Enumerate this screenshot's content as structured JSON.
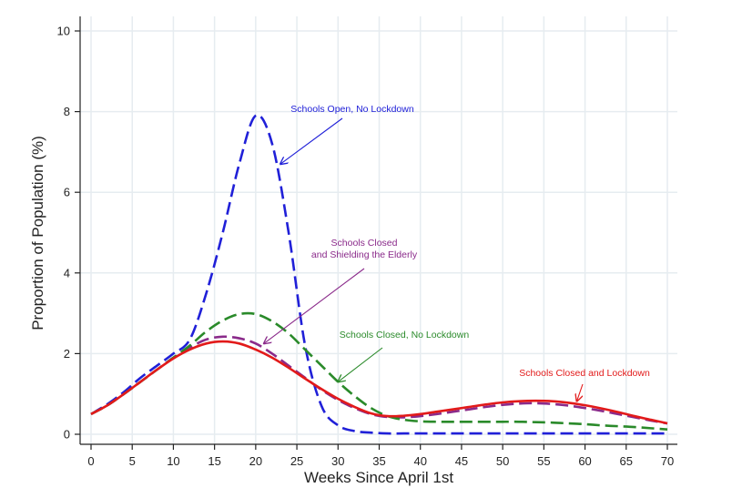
{
  "chart_data": {
    "type": "line",
    "title": "",
    "xlabel": "Weeks Since April 1st",
    "ylabel": "Proportion of Population (%)",
    "xlim": [
      0,
      70
    ],
    "ylim": [
      0,
      10
    ],
    "x_ticks": [
      0,
      5,
      10,
      15,
      20,
      25,
      30,
      35,
      40,
      45,
      50,
      55,
      60,
      65,
      70
    ],
    "y_ticks": [
      0,
      2,
      4,
      6,
      8,
      10
    ],
    "grid": true,
    "legend": "none (series labelled by arrow annotations)",
    "series": [
      {
        "name": "Schools Open, No Lockdown",
        "color": "#2020d8",
        "style": "dashed",
        "x": [
          0,
          2,
          4,
          6,
          8,
          10,
          12,
          14,
          16,
          18,
          20,
          22,
          24,
          26,
          28,
          30,
          32,
          34,
          36,
          38,
          40,
          50,
          60,
          70
        ],
        "y": [
          0.5,
          0.75,
          1.05,
          1.4,
          1.7,
          2.0,
          2.35,
          3.5,
          5.0,
          6.7,
          7.9,
          7.2,
          5.0,
          2.2,
          0.7,
          0.22,
          0.08,
          0.04,
          0.02,
          0.02,
          0.02,
          0.02,
          0.02,
          0.02
        ]
      },
      {
        "name": "Schools Closed and Shielding the Elderly",
        "color": "#8a2a8a",
        "style": "dashed",
        "x": [
          0,
          2,
          4,
          6,
          8,
          10,
          12,
          14,
          16,
          18,
          20,
          22,
          24,
          26,
          28,
          30,
          32,
          34,
          36,
          38,
          40,
          42,
          44,
          46,
          48,
          50,
          52,
          54,
          56,
          58,
          60,
          62,
          64,
          66,
          68,
          70
        ],
        "y": [
          0.5,
          0.72,
          1.0,
          1.3,
          1.6,
          1.9,
          2.15,
          2.35,
          2.42,
          2.38,
          2.25,
          2.0,
          1.7,
          1.4,
          1.1,
          0.85,
          0.65,
          0.5,
          0.43,
          0.42,
          0.45,
          0.5,
          0.56,
          0.62,
          0.68,
          0.73,
          0.76,
          0.77,
          0.75,
          0.71,
          0.65,
          0.58,
          0.5,
          0.42,
          0.34,
          0.27
        ]
      },
      {
        "name": "Schools Closed, No Lockdown",
        "color": "#2a8a2a",
        "style": "dashed",
        "x": [
          0,
          2,
          4,
          6,
          8,
          10,
          12,
          14,
          16,
          18,
          20,
          22,
          24,
          26,
          28,
          30,
          32,
          34,
          36,
          38,
          40,
          42,
          44,
          46,
          48,
          50,
          52,
          54,
          56,
          58,
          60,
          62,
          64,
          66,
          68,
          70
        ],
        "y": [
          0.5,
          0.72,
          1.0,
          1.3,
          1.6,
          1.9,
          2.2,
          2.55,
          2.82,
          2.98,
          2.98,
          2.8,
          2.5,
          2.1,
          1.7,
          1.3,
          0.95,
          0.65,
          0.45,
          0.36,
          0.32,
          0.31,
          0.31,
          0.31,
          0.31,
          0.31,
          0.31,
          0.3,
          0.29,
          0.27,
          0.25,
          0.22,
          0.2,
          0.18,
          0.15,
          0.12
        ]
      },
      {
        "name": "Schools Closed and Lockdown",
        "color": "#e21a1a",
        "style": "solid",
        "x": [
          0,
          2,
          4,
          6,
          8,
          10,
          12,
          14,
          16,
          18,
          20,
          22,
          24,
          26,
          28,
          30,
          32,
          34,
          36,
          38,
          40,
          42,
          44,
          46,
          48,
          50,
          52,
          54,
          56,
          58,
          60,
          62,
          64,
          66,
          68,
          70
        ],
        "y": [
          0.5,
          0.72,
          1.0,
          1.3,
          1.6,
          1.88,
          2.1,
          2.25,
          2.3,
          2.25,
          2.1,
          1.9,
          1.65,
          1.38,
          1.12,
          0.88,
          0.68,
          0.52,
          0.45,
          0.46,
          0.5,
          0.56,
          0.62,
          0.68,
          0.74,
          0.79,
          0.82,
          0.83,
          0.82,
          0.78,
          0.72,
          0.64,
          0.55,
          0.45,
          0.36,
          0.27
        ]
      }
    ],
    "annotations": [
      {
        "lines": [
          "Schools Open, No Lockdown"
        ],
        "color": "#2020d8",
        "arrow_to": [
          23,
          6.7
        ]
      },
      {
        "lines": [
          "Schools Closed",
          "and Shielding the Elderly"
        ],
        "color": "#8a2a8a",
        "arrow_to": [
          21,
          2.25
        ]
      },
      {
        "lines": [
          "Schools Closed, No Lockdown"
        ],
        "color": "#2a8a2a",
        "arrow_to": [
          30,
          1.3
        ]
      },
      {
        "lines": [
          "Schools Closed and Lockdown"
        ],
        "color": "#e21a1a",
        "arrow_to": [
          59,
          0.82
        ]
      }
    ]
  }
}
